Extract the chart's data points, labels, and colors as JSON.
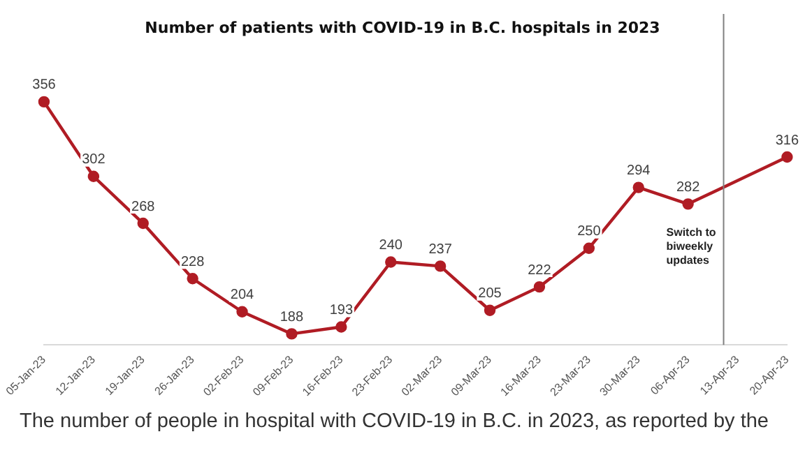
{
  "chart_data": {
    "type": "line",
    "title": "Number of patients with COVID-19 in B.C. hospitals in 2023",
    "categories": [
      "05-Jan-23",
      "12-Jan-23",
      "19-Jan-23",
      "26-Jan-23",
      "02-Feb-23",
      "09-Feb-23",
      "16-Feb-23",
      "23-Feb-23",
      "02-Mar-23",
      "09-Mar-23",
      "16-Mar-23",
      "23-Mar-23",
      "30-Mar-23",
      "06-Apr-23",
      "13-Apr-23",
      "20-Apr-23"
    ],
    "series": [
      {
        "color": "#b01c24",
        "values": [
          356,
          302,
          268,
          228,
          204,
          188,
          193,
          240,
          237,
          205,
          222,
          250,
          294,
          282,
          null,
          316
        ]
      }
    ],
    "data_labels": true,
    "marker": "circle",
    "grid": false,
    "legend": false,
    "tick_labels": "x",
    "ref_lines": [
      {
        "axis": "x",
        "value": "13-Apr-23",
        "label": "Switch to biweekly updates",
        "color": "#7f7f7f"
      }
    ],
    "annotations": [
      "The number of people in hospital with COVID-19 in B.C. in 2023, as reported by the"
    ]
  }
}
